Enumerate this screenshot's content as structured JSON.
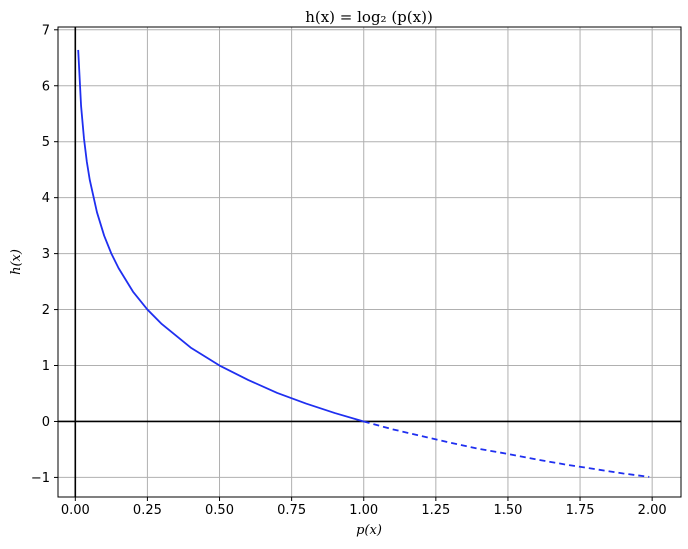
{
  "chart_data": {
    "type": "line",
    "title": "h(x) = log₂ (p(x))",
    "xlabel": "p(x)",
    "ylabel": "h(x)",
    "xlim": [
      -0.06,
      2.1
    ],
    "ylim": [
      -1.35,
      7.05
    ],
    "grid": true,
    "x_ticks": [
      0.0,
      0.25,
      0.5,
      0.75,
      1.0,
      1.25,
      1.5,
      1.75,
      2.0
    ],
    "x_tick_labels": [
      "0.00",
      "0.25",
      "0.50",
      "0.75",
      "1.00",
      "1.25",
      "1.50",
      "1.75",
      "2.00"
    ],
    "y_ticks": [
      -1,
      0,
      1,
      2,
      3,
      4,
      5,
      6,
      7
    ],
    "y_tick_labels": [
      "−1",
      "0",
      "1",
      "2",
      "3",
      "4",
      "5",
      "6",
      "7"
    ],
    "reference_lines": {
      "x": 0,
      "y": 0
    },
    "series": [
      {
        "style": "solid",
        "color": "#1f2ff0",
        "x": [
          0.01,
          0.02,
          0.03,
          0.04,
          0.05,
          0.075,
          0.1,
          0.125,
          0.15,
          0.2,
          0.25,
          0.3,
          0.4,
          0.5,
          0.6,
          0.7,
          0.8,
          0.9,
          1.0
        ],
        "y": [
          6.64,
          5.64,
          5.06,
          4.64,
          4.32,
          3.74,
          3.32,
          3.0,
          2.74,
          2.32,
          2.0,
          1.74,
          1.32,
          1.0,
          0.74,
          0.51,
          0.32,
          0.15,
          0.0
        ]
      },
      {
        "style": "dashed",
        "color": "#1f2ff0",
        "x": [
          1.0,
          1.1,
          1.2,
          1.3,
          1.4,
          1.5,
          1.6,
          1.7,
          1.8,
          1.9,
          1.99
        ],
        "y": [
          0.0,
          -0.14,
          -0.26,
          -0.38,
          -0.49,
          -0.58,
          -0.68,
          -0.77,
          -0.85,
          -0.93,
          -0.99
        ]
      }
    ]
  }
}
